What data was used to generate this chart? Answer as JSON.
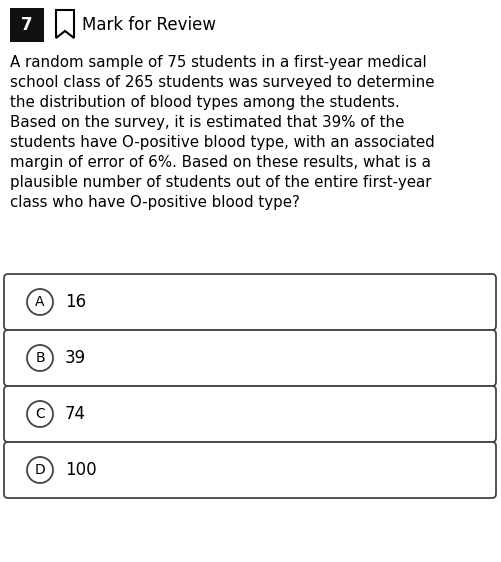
{
  "question_number": "7",
  "header_text": "Mark for Review",
  "question_text": "A random sample of 75 students in a first-year medical\nschool class of 265 students was surveyed to determine\nthe distribution of blood types among the students.\nBased on the survey, it is estimated that 39% of the\nstudents have O-positive blood type, with an associated\nmargin of error of 6%. Based on these results, what is a\nplausible number of students out of the entire first-year\nclass who have O-positive blood type?",
  "choices": [
    {
      "label": "A",
      "text": "16"
    },
    {
      "label": "B",
      "text": "39"
    },
    {
      "label": "C",
      "text": "74"
    },
    {
      "label": "D",
      "text": "100"
    }
  ],
  "bg_color": "#ffffff",
  "text_color": "#000000",
  "header_bg": "#111111",
  "header_text_color": "#ffffff",
  "choice_box_color": "#ffffff",
  "choice_border_color": "#444444",
  "choice_text_color": "#000000",
  "question_fontsize": 10.8,
  "choice_fontsize": 12.0,
  "header_fontsize": 12.0,
  "fig_width": 5.01,
  "fig_height": 5.62,
  "dpi": 100
}
